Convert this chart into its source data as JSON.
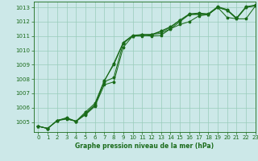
{
  "title": "Graphe pression niveau de la mer (hPa)",
  "bg_color": "#cce8e8",
  "grid_color": "#99ccbb",
  "line_color": "#1a6b1a",
  "xlim": [
    -0.5,
    23
  ],
  "ylim": [
    1004.3,
    1013.4
  ],
  "yticks": [
    1005,
    1006,
    1007,
    1008,
    1009,
    1010,
    1011,
    1012,
    1013
  ],
  "xticks": [
    0,
    1,
    2,
    3,
    4,
    5,
    6,
    7,
    8,
    9,
    10,
    11,
    12,
    13,
    14,
    15,
    16,
    17,
    18,
    19,
    20,
    21,
    22,
    23
  ],
  "series": [
    [
      1004.7,
      1004.55,
      1005.1,
      1005.2,
      1005.05,
      1005.5,
      1006.1,
      1007.6,
      1007.8,
      1010.2,
      1011.0,
      1011.0,
      1011.1,
      1011.2,
      1011.5,
      1011.8,
      1012.0,
      1012.4,
      1012.5,
      1013.0,
      1012.3,
      1012.2,
      1013.0,
      1013.1
    ],
    [
      1004.7,
      1004.55,
      1005.1,
      1005.25,
      1005.05,
      1005.6,
      1006.2,
      1007.8,
      1008.1,
      1010.5,
      1011.0,
      1011.05,
      1011.0,
      1011.05,
      1011.5,
      1012.0,
      1012.5,
      1012.5,
      1012.5,
      1013.0,
      1012.8,
      1012.2,
      1012.2,
      1013.1
    ],
    [
      1004.7,
      1004.55,
      1005.1,
      1005.3,
      1005.05,
      1005.7,
      1006.3,
      1007.9,
      1009.0,
      1010.5,
      1011.0,
      1011.1,
      1011.1,
      1011.3,
      1011.6,
      1012.1,
      1012.5,
      1012.55,
      1012.5,
      1013.0,
      1012.8,
      1012.25,
      1013.0,
      1013.15
    ],
    [
      1004.7,
      1004.55,
      1005.1,
      1005.25,
      1005.05,
      1005.55,
      1006.15,
      1007.85,
      1009.1,
      1010.55,
      1011.05,
      1011.1,
      1011.1,
      1011.35,
      1011.65,
      1012.1,
      1012.55,
      1012.6,
      1012.55,
      1013.05,
      1012.85,
      1012.25,
      1013.05,
      1013.15
    ]
  ]
}
